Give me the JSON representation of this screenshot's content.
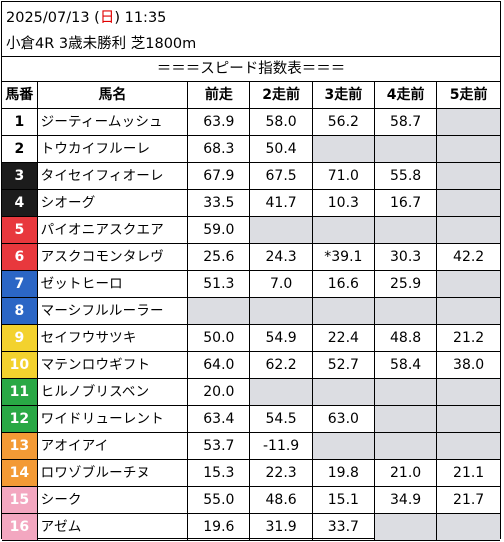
{
  "header": {
    "date_prefix": "2025/07/13 (",
    "weekday": "日",
    "date_suffix": ") 11:35",
    "race_info": "小倉4R 3歳未勝利 芝1800m"
  },
  "title": "＝＝＝スピード指数表＝＝＝",
  "columns": [
    "馬番",
    "馬名",
    "前走",
    "2走前",
    "3走前",
    "4走前",
    "5走前"
  ],
  "colors": {
    "frame1": "#ffffff",
    "frame2": "#000000",
    "frame3": "#e8383d",
    "frame4": "#2b66c5",
    "frame5": "#f3d22e",
    "frame6": "#29a845",
    "frame7": "#f39a35",
    "frame8": "#f3a7c0",
    "empty_cell": "#dcdde2"
  },
  "rows": [
    {
      "num": "1",
      "name": "ジーティームッシュ",
      "values": [
        "63.9",
        "58.0",
        "56.2",
        "58.7",
        ""
      ],
      "bg": "#ffffff",
      "fg": "#000000"
    },
    {
      "num": "2",
      "name": "トウカイフルーレ",
      "values": [
        "68.3",
        "50.4",
        "",
        "",
        ""
      ],
      "bg": "#ffffff",
      "fg": "#000000"
    },
    {
      "num": "3",
      "name": "タイセイフィオーレ",
      "values": [
        "67.9",
        "67.5",
        "71.0",
        "55.8",
        ""
      ],
      "bg": "#1c1c1c",
      "fg": "#ffffff"
    },
    {
      "num": "4",
      "name": "シオーグ",
      "values": [
        "33.5",
        "41.7",
        "10.3",
        "16.7",
        ""
      ],
      "bg": "#1c1c1c",
      "fg": "#ffffff"
    },
    {
      "num": "5",
      "name": "パイオニアスクエア",
      "values": [
        "59.0",
        "",
        "",
        "",
        ""
      ],
      "bg": "#e8383d",
      "fg": "#ffffff"
    },
    {
      "num": "6",
      "name": "アスクコモンタレヴ",
      "values": [
        "25.6",
        "24.3",
        "*39.1",
        "30.3",
        "42.2"
      ],
      "bg": "#e8383d",
      "fg": "#ffffff"
    },
    {
      "num": "7",
      "name": "ゼットヒーロ",
      "values": [
        "51.3",
        "7.0",
        "16.6",
        "25.9",
        ""
      ],
      "bg": "#2b66c5",
      "fg": "#ffffff"
    },
    {
      "num": "8",
      "name": "マーシフルルーラー",
      "values": [
        "",
        "",
        "",
        "",
        ""
      ],
      "bg": "#2b66c5",
      "fg": "#ffffff"
    },
    {
      "num": "9",
      "name": "セイフウサツキ",
      "values": [
        "50.0",
        "54.9",
        "22.4",
        "48.8",
        "21.2"
      ],
      "bg": "#f3d22e",
      "fg": "#ffffff"
    },
    {
      "num": "10",
      "name": "マテンロウギフト",
      "values": [
        "64.0",
        "62.2",
        "52.7",
        "58.4",
        "38.0"
      ],
      "bg": "#f3d22e",
      "fg": "#ffffff"
    },
    {
      "num": "11",
      "name": "ヒルノブリスベン",
      "values": [
        "20.0",
        "",
        "",
        "",
        ""
      ],
      "bg": "#29a845",
      "fg": "#ffffff"
    },
    {
      "num": "12",
      "name": "ワイドリューレント",
      "values": [
        "63.4",
        "54.5",
        "63.0",
        "",
        ""
      ],
      "bg": "#29a845",
      "fg": "#ffffff"
    },
    {
      "num": "13",
      "name": "アオイアイ",
      "values": [
        "53.7",
        "-11.9",
        "",
        "",
        ""
      ],
      "bg": "#f39a35",
      "fg": "#ffffff"
    },
    {
      "num": "14",
      "name": "ロワゾブルーチヌ",
      "values": [
        "15.3",
        "22.3",
        "19.8",
        "21.0",
        "21.1"
      ],
      "bg": "#f39a35",
      "fg": "#ffffff"
    },
    {
      "num": "15",
      "name": "シーク",
      "values": [
        "55.0",
        "48.6",
        "15.1",
        "34.9",
        "21.7"
      ],
      "bg": "#f3a7c0",
      "fg": "#ffffff"
    },
    {
      "num": "16",
      "name": "アゼム",
      "values": [
        "19.6",
        "31.9",
        "33.7",
        "",
        ""
      ],
      "bg": "#f3a7c0",
      "fg": "#ffffff"
    }
  ]
}
